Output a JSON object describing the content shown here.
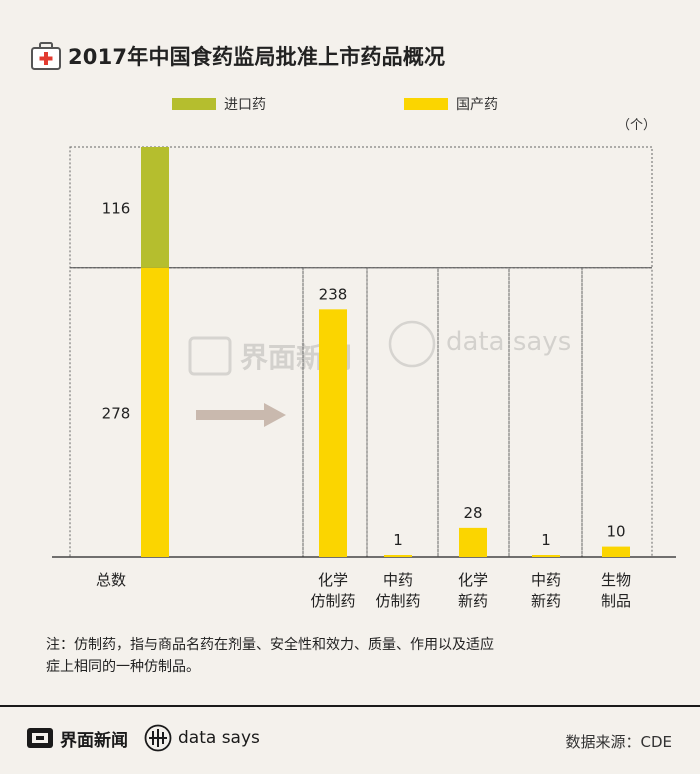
{
  "title": "2017年中国食药监局批准上市药品概况",
  "unit": "（个）",
  "colors": {
    "imported": "#b5be2e",
    "domestic": "#fbd500",
    "arrow": "#c9b9ae",
    "background": "#f4f1ec"
  },
  "watermark": {
    "jiemian": "界面新闻",
    "datasays": "data says"
  },
  "chart_data": {
    "type": "bar",
    "series": [
      {
        "name": "进口药",
        "color": "#b5be2e"
      },
      {
        "name": "国产药",
        "color": "#fbd500"
      }
    ],
    "bars": [
      {
        "category": "总数",
        "imported": 116,
        "domestic": 278
      },
      {
        "category": "化学仿制药",
        "label_lines": [
          "化学",
          "仿制药"
        ],
        "domestic": 238
      },
      {
        "category": "中药仿制药",
        "label_lines": [
          "中药",
          "仿制药"
        ],
        "domestic": 1
      },
      {
        "category": "化学新药",
        "label_lines": [
          "化学",
          "新药"
        ],
        "domestic": 28
      },
      {
        "category": "中药新药",
        "label_lines": [
          "中药",
          "新药"
        ],
        "domestic": 1
      },
      {
        "category": "生物制品",
        "label_lines": [
          "生物",
          "制品"
        ],
        "domestic": 10
      }
    ],
    "ylim": [
      0,
      394
    ],
    "stacked": true,
    "grid": false,
    "legend_position": "top"
  },
  "note": {
    "line1": "注：仿制药，指与商品名药在剂量、安全性和效力、质量、作用以及适应",
    "line2": "症上相同的一种仿制品。"
  },
  "footer": {
    "brand": "界面新闻",
    "data_says": "data says",
    "source": "数据来源：CDE"
  }
}
